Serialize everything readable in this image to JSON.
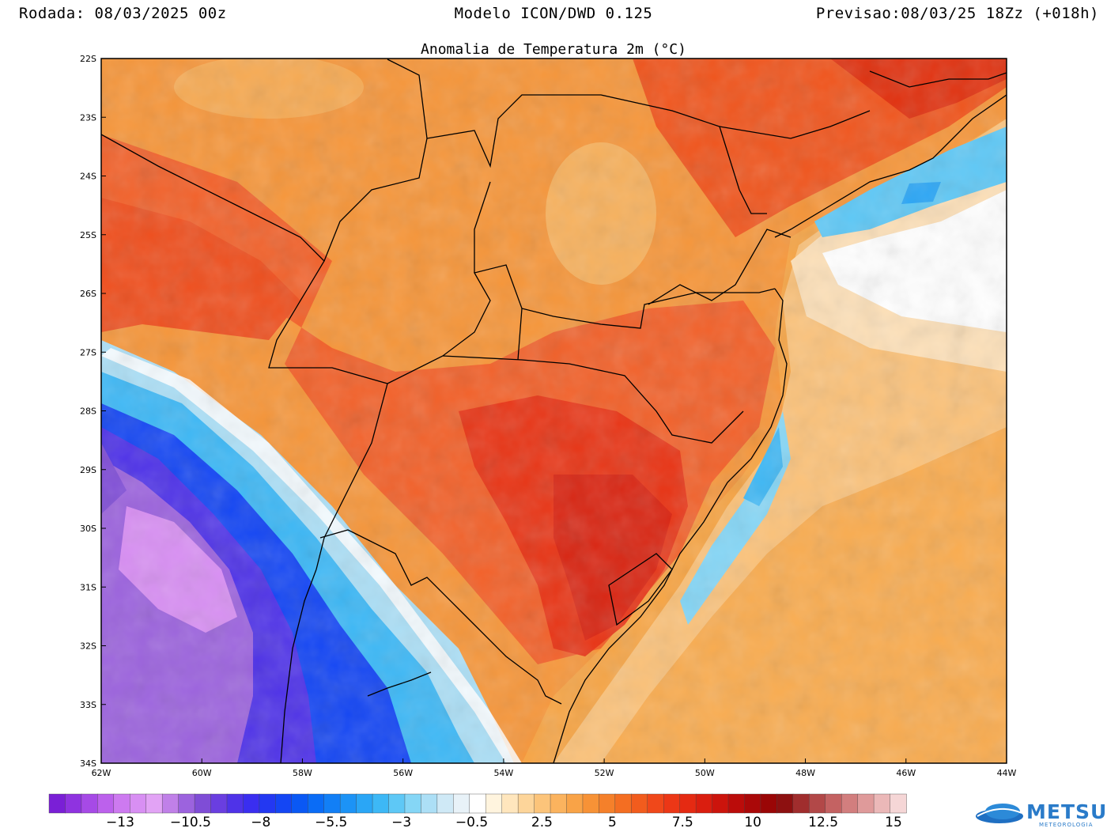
{
  "header": {
    "left": "Rodada: 08/03/2025 00z",
    "center": "Modelo ICON/DWD 0.125",
    "right": "Previsao:08/03/25 18Zz (+018h)"
  },
  "map_title": "Anomalia de Temperatura 2m (°C)",
  "latitudes": [
    "22S",
    "23S",
    "24S",
    "25S",
    "26S",
    "27S",
    "28S",
    "29S",
    "30S",
    "31S",
    "32S",
    "33S",
    "34S"
  ],
  "longitudes": [
    "62W",
    "60W",
    "58W",
    "56W",
    "54W",
    "52W",
    "50W",
    "48W",
    "46W",
    "44W"
  ],
  "colorbar": {
    "labels": [
      "-13",
      "-10.5",
      "-8",
      "-5.5",
      "-3",
      "-0.5",
      "2.5",
      "5",
      "7.5",
      "10",
      "12.5",
      "15"
    ],
    "colors": [
      "#7a1fd6",
      "#8f33e0",
      "#a64ae6",
      "#bc61ec",
      "#cd7af0",
      "#d88ff3",
      "#e2a3f5",
      "#c080e8",
      "#9c63de",
      "#7f4dd6",
      "#6a3ee0",
      "#4f33e8",
      "#3a2ef0",
      "#2338f2",
      "#1446f4",
      "#0a58f4",
      "#0a6cf6",
      "#127ff6",
      "#1c93f6",
      "#2aa6f6",
      "#3db8f6",
      "#5ec8f6",
      "#85d6f6",
      "#acdff6",
      "#cfe9f6",
      "#e8f2f8",
      "#ffffff",
      "#fff4de",
      "#ffe6bd",
      "#fdd59a",
      "#fcc47a",
      "#fbb35e",
      "#f9a347",
      "#f79236",
      "#f5802a",
      "#f46e22",
      "#f25c1d",
      "#f0481a",
      "#ec3716",
      "#e52a12",
      "#da1e0f",
      "#cc140c",
      "#bb0c0a",
      "#aa0808",
      "#9a0606",
      "#8d1010",
      "#a02d2d",
      "#b24848",
      "#c46262",
      "#d27e7e",
      "#df9a9a",
      "#ebb8b8",
      "#f5d6d6"
    ]
  },
  "logo": {
    "text": "METSUL",
    "subtext": "METEOROLOGIA"
  }
}
